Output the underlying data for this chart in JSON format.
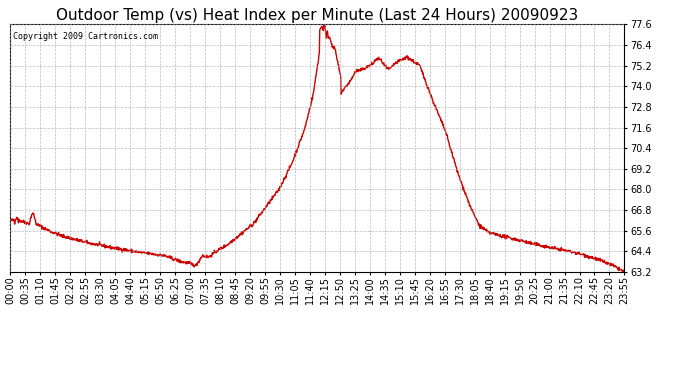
{
  "title": "Outdoor Temp (vs) Heat Index per Minute (Last 24 Hours) 20090923",
  "copyright_text": "Copyright 2009 Cartronics.com",
  "line_color": "#cc0000",
  "background_color": "#ffffff",
  "grid_color": "#aaaaaa",
  "ylim": [
    63.2,
    77.6
  ],
  "yticks": [
    63.2,
    64.4,
    65.6,
    66.8,
    68.0,
    69.2,
    70.4,
    71.6,
    72.8,
    74.0,
    75.2,
    76.4,
    77.6
  ],
  "xtick_labels": [
    "00:00",
    "00:35",
    "01:10",
    "01:45",
    "02:20",
    "02:55",
    "03:30",
    "04:05",
    "04:40",
    "05:15",
    "05:50",
    "06:25",
    "07:00",
    "07:35",
    "08:10",
    "08:45",
    "09:20",
    "09:55",
    "10:30",
    "11:05",
    "11:40",
    "12:15",
    "12:50",
    "13:25",
    "14:00",
    "14:35",
    "15:10",
    "15:45",
    "16:20",
    "16:55",
    "17:30",
    "18:05",
    "18:40",
    "19:15",
    "19:50",
    "20:25",
    "21:00",
    "21:35",
    "22:10",
    "22:45",
    "23:20",
    "23:55"
  ],
  "title_fontsize": 11,
  "tick_fontsize": 7,
  "copyright_fontsize": 6,
  "line_width": 1.0
}
